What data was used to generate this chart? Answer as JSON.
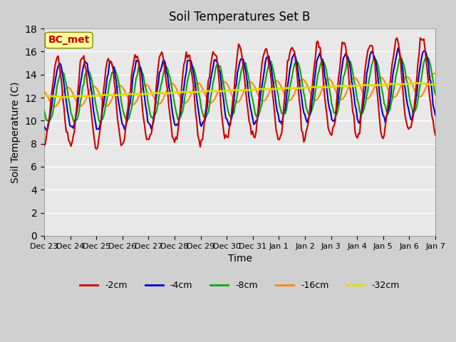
{
  "title": "Soil Temperatures Set B",
  "xlabel": "Time",
  "ylabel": "Soil Temperature (C)",
  "annotation": "BC_met",
  "annotation_color": "#cc0000",
  "annotation_bg": "#ffff99",
  "ylim": [
    0,
    18
  ],
  "yticks": [
    0,
    2,
    4,
    6,
    8,
    10,
    12,
    14,
    16,
    18
  ],
  "background_color": "#e8e8e8",
  "plot_bg": "#e8e8e8",
  "series": {
    "-2cm": {
      "color": "#cc0000",
      "lw": 1.5
    },
    "-4cm": {
      "color": "#0000cc",
      "lw": 1.5
    },
    "-8cm": {
      "color": "#00aa00",
      "lw": 1.5
    },
    "-16cm": {
      "color": "#ff8800",
      "lw": 1.5
    },
    "-32cm": {
      "color": "#dddd00",
      "lw": 2.0
    }
  },
  "xtick_labels": [
    "Dec 23",
    "Dec 24",
    "Dec 25",
    "Dec 26",
    "Dec 27",
    "Dec 28",
    "Dec 29",
    "Dec 30",
    "Dec 31",
    "Jan 1",
    "Jan 2",
    "Jan 3",
    "Jan 4",
    "Jan 5",
    "Jan 6",
    "Jan 7"
  ],
  "n_points": 337
}
